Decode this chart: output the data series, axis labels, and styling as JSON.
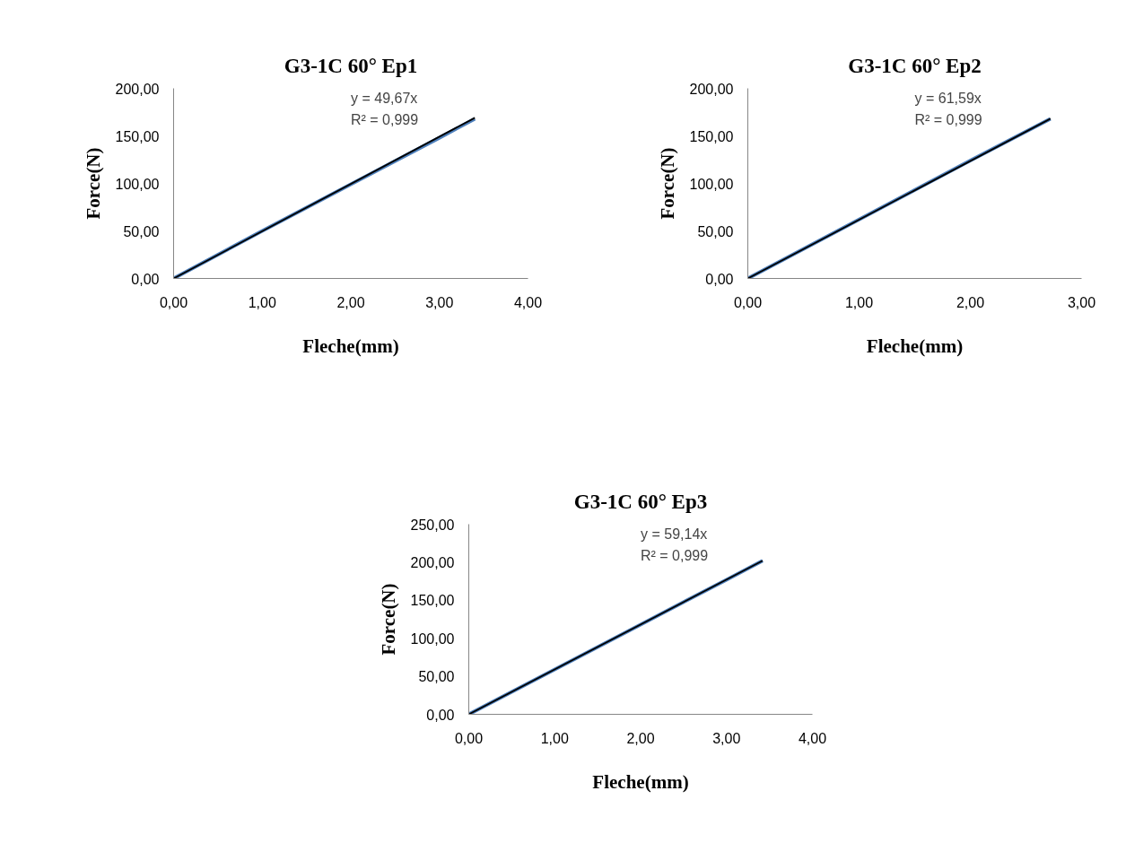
{
  "chart_data": [
    {
      "type": "line",
      "title": "G3-1C 60° Ep1",
      "xlabel": "Fleche(mm)",
      "ylabel": "Force(N)",
      "xlim": [
        0,
        4
      ],
      "ylim": [
        0,
        200
      ],
      "xticks": [
        {
          "value": 0,
          "label": "0,00"
        },
        {
          "value": 1,
          "label": "1,00"
        },
        {
          "value": 2,
          "label": "2,00"
        },
        {
          "value": 3,
          "label": "3,00"
        },
        {
          "value": 4,
          "label": "4,00"
        }
      ],
      "yticks": [
        {
          "value": 0,
          "label": "0,00"
        },
        {
          "value": 50,
          "label": "50,00"
        },
        {
          "value": 100,
          "label": "100,00"
        },
        {
          "value": 150,
          "label": "150,00"
        },
        {
          "value": 200,
          "label": "200,00"
        }
      ],
      "grid": false,
      "annotations": [
        "y = 49,67x",
        "R² = 0,999"
      ],
      "series": [
        {
          "color": "#4f81bd",
          "x": [
            0,
            1,
            2,
            3,
            3.4
          ],
          "values": [
            0,
            50,
            99,
            148,
            168
          ]
        },
        {
          "color": "#000000",
          "x": [
            0,
            3.4
          ],
          "values": [
            0,
            169
          ]
        }
      ]
    },
    {
      "type": "line",
      "title": "G3-1C 60° Ep2",
      "xlabel": "Fleche(mm)",
      "ylabel": "Force(N)",
      "xlim": [
        0,
        3
      ],
      "ylim": [
        0,
        200
      ],
      "xticks": [
        {
          "value": 0,
          "label": "0,00"
        },
        {
          "value": 1,
          "label": "1,00"
        },
        {
          "value": 2,
          "label": "2,00"
        },
        {
          "value": 3,
          "label": "3,00"
        }
      ],
      "yticks": [
        {
          "value": 0,
          "label": "0,00"
        },
        {
          "value": 50,
          "label": "50,00"
        },
        {
          "value": 100,
          "label": "100,00"
        },
        {
          "value": 150,
          "label": "150,00"
        },
        {
          "value": 200,
          "label": "200,00"
        }
      ],
      "grid": false,
      "annotations": [
        "y = 61,59x",
        "R² = 0,999"
      ],
      "series": [
        {
          "color": "#4f81bd",
          "x": [
            0,
            1,
            2,
            2.72
          ],
          "values": [
            0,
            62,
            124,
            168
          ]
        },
        {
          "color": "#000000",
          "x": [
            0,
            2.72
          ],
          "values": [
            0,
            168
          ]
        }
      ]
    },
    {
      "type": "line",
      "title": "G3-1C 60° Ep3",
      "xlabel": "Fleche(mm)",
      "ylabel": "Force(N)",
      "xlim": [
        0,
        4
      ],
      "ylim": [
        0,
        250
      ],
      "xticks": [
        {
          "value": 0,
          "label": "0,00"
        },
        {
          "value": 1,
          "label": "1,00"
        },
        {
          "value": 2,
          "label": "2,00"
        },
        {
          "value": 3,
          "label": "3,00"
        },
        {
          "value": 4,
          "label": "4,00"
        }
      ],
      "yticks": [
        {
          "value": 0,
          "label": "0,00"
        },
        {
          "value": 50,
          "label": "50,00"
        },
        {
          "value": 100,
          "label": "100,00"
        },
        {
          "value": 150,
          "label": "150,00"
        },
        {
          "value": 200,
          "label": "200,00"
        },
        {
          "value": 250,
          "label": "250,00"
        }
      ],
      "grid": false,
      "annotations": [
        "y = 59,14x",
        "R² = 0,999"
      ],
      "series": [
        {
          "color": "#4f81bd",
          "x": [
            0,
            1,
            2,
            3,
            3.42
          ],
          "values": [
            0,
            59,
            118,
            177,
            202
          ]
        },
        {
          "color": "#000000",
          "x": [
            0,
            3.42
          ],
          "values": [
            0,
            202
          ]
        }
      ]
    }
  ]
}
